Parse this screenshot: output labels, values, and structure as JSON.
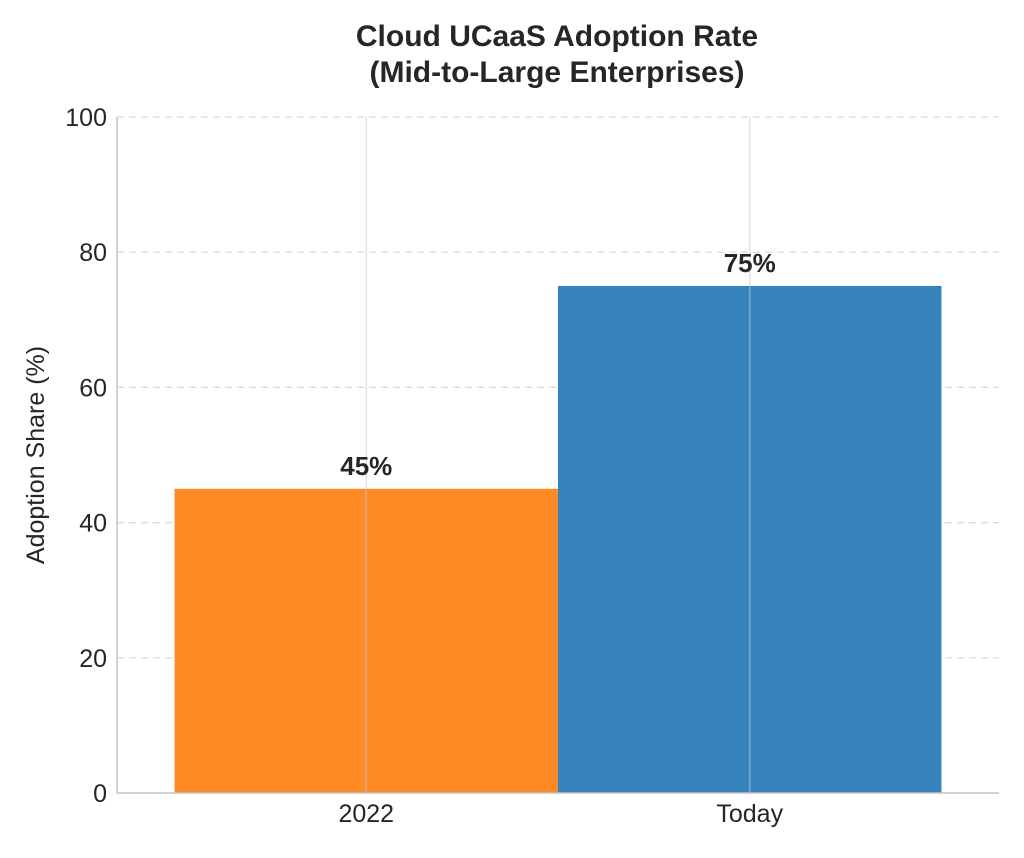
{
  "chart_data": {
    "type": "bar",
    "title_lines": [
      "Cloud UCaaS Adoption Rate",
      "(Mid-to-Large Enterprises)"
    ],
    "xlabel": "",
    "ylabel": "Adoption Share (%)",
    "categories": [
      "2022",
      "Today"
    ],
    "values": [
      45,
      75
    ],
    "data_labels": [
      "45%",
      "75%"
    ],
    "colors": [
      "#ff8b26",
      "#3682bb"
    ],
    "ylim": [
      0,
      100
    ],
    "yticks": [
      0,
      20,
      40,
      60,
      80,
      100
    ],
    "ytick_labels": [
      "0",
      "20",
      "40",
      "60",
      "80",
      "100"
    ],
    "grid": true
  }
}
